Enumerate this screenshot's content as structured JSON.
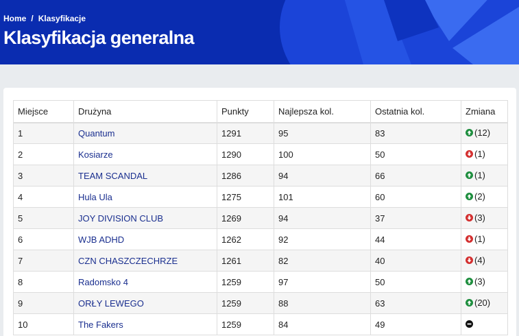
{
  "breadcrumb": {
    "home": "Home",
    "separator": "/",
    "current": "Klasyfikacje"
  },
  "page_title": "Klasyfikacja generalna",
  "colors": {
    "header_bg": "#0a2cb0",
    "up": "#1e8e3e",
    "down": "#d32f2f",
    "same": "#111111",
    "team_link": "#1a2f8f"
  },
  "table": {
    "headers": [
      "Miejsce",
      "Drużyna",
      "Punkty",
      "Najlepsza kol.",
      "Ostatnia kol.",
      "Zmiana"
    ],
    "rows": [
      {
        "place": "1",
        "team": "Quantum",
        "points": "1291",
        "best": "95",
        "last": "83",
        "dir": "up",
        "change": "(12)"
      },
      {
        "place": "2",
        "team": "Kosiarze",
        "points": "1290",
        "best": "100",
        "last": "50",
        "dir": "down",
        "change": "(1)"
      },
      {
        "place": "3",
        "team": "TEAM SCANDAL",
        "points": "1286",
        "best": "94",
        "last": "66",
        "dir": "up",
        "change": "(1)"
      },
      {
        "place": "4",
        "team": "Hula Ula",
        "points": "1275",
        "best": "101",
        "last": "60",
        "dir": "up",
        "change": "(2)"
      },
      {
        "place": "5",
        "team": "JOY DIVISION CLUB",
        "points": "1269",
        "best": "94",
        "last": "37",
        "dir": "down",
        "change": "(3)"
      },
      {
        "place": "6",
        "team": "WJB ADHD",
        "points": "1262",
        "best": "92",
        "last": "44",
        "dir": "down",
        "change": "(1)"
      },
      {
        "place": "7",
        "team": "CZN CHASZCZECHRZE",
        "points": "1261",
        "best": "82",
        "last": "40",
        "dir": "down",
        "change": "(4)"
      },
      {
        "place": "8",
        "team": "Radomsko 4",
        "points": "1259",
        "best": "97",
        "last": "50",
        "dir": "up",
        "change": "(3)"
      },
      {
        "place": "9",
        "team": "ORŁY LEWEGO",
        "points": "1259",
        "best": "88",
        "last": "63",
        "dir": "up",
        "change": "(20)"
      },
      {
        "place": "10",
        "team": "The Fakers",
        "points": "1259",
        "best": "84",
        "last": "49",
        "dir": "same",
        "change": ""
      }
    ]
  }
}
